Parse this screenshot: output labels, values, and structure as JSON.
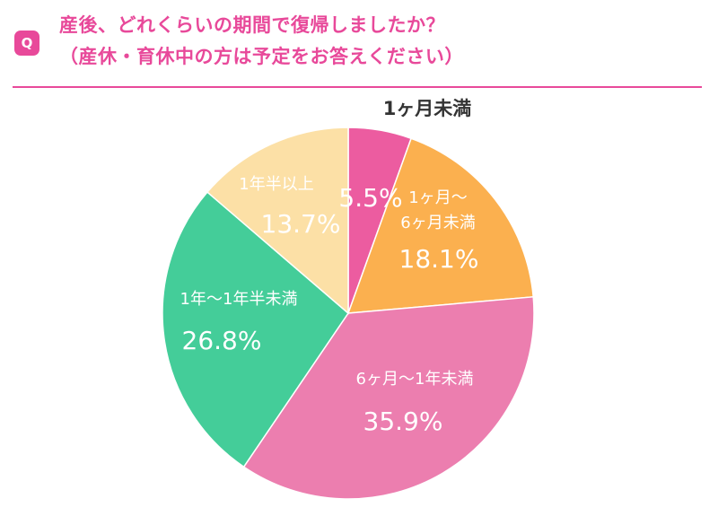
{
  "header": {
    "badge": "Q",
    "title_line_1": "産後、どれくらいの期間で復帰しましたか？",
    "title_line_2": "（産休・育休中の方は予定をお答えください）"
  },
  "colors": {
    "accent": "#E8499A",
    "title_text": "#E8499A",
    "rule": "#E8499A",
    "label_white": "#FFFFFF",
    "label_dark": "#333333",
    "slice_edge": "#FFFFFF"
  },
  "chart_data": {
    "type": "pie",
    "start_angle_deg": 0,
    "direction": "clockwise",
    "slices": [
      {
        "label": "1ヶ月未満",
        "value": 5.5,
        "value_label": "5.5%",
        "color": "#EC5CA0",
        "label_color": "#333333",
        "value_color": "#FFFFFF"
      },
      {
        "label_lines": [
          "1ヶ月〜",
          "6ヶ月未満"
        ],
        "value": 18.1,
        "value_label": "18.1%",
        "color": "#FBB04F",
        "label_color": "#FFFFFF",
        "value_color": "#FFFFFF"
      },
      {
        "label": "6ヶ月〜1年未満",
        "value": 35.9,
        "value_label": "35.9%",
        "color": "#EC7EAF",
        "label_color": "#FFFFFF",
        "value_color": "#FFFFFF"
      },
      {
        "label": "1年〜1年半未満",
        "value": 26.8,
        "value_label": "26.8%",
        "color": "#44CD99",
        "label_color": "#FFFFFF",
        "value_color": "#FFFFFF"
      },
      {
        "label": "1年半以上",
        "value": 13.7,
        "value_label": "13.7%",
        "color": "#FCE0A6",
        "label_color": "#FFFFFF",
        "value_color": "#FFFFFF"
      }
    ]
  }
}
